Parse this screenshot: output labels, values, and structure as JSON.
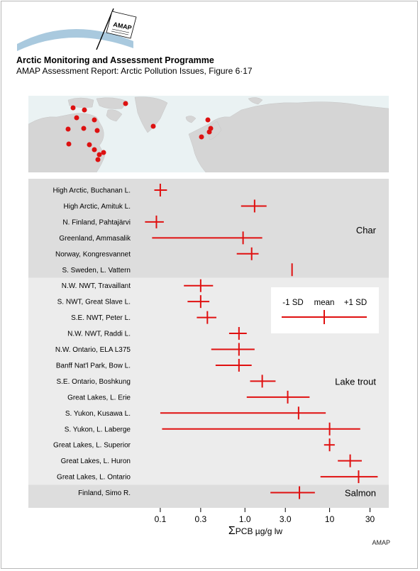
{
  "header": {
    "logo_text": "AMAP",
    "org": "Arctic Monitoring and Assessment Programme",
    "report": "AMAP Assessment Report: Arctic Pollution Issues, Figure 6·17"
  },
  "credit": "AMAP",
  "map": {
    "land_color": "#d5d5d5",
    "sea_color": "#eaf2f3",
    "dot_color": "#dd1111"
  },
  "colors": {
    "group_band": "#dddddd",
    "lake_band": "#ececec",
    "marker": "#e01010"
  },
  "legend": {
    "minus": "-1 SD",
    "mean": "mean",
    "plus": "+1 SD"
  },
  "chart_data": {
    "type": "scatter",
    "x_scale": "log",
    "xlim": [
      0.05,
      50
    ],
    "xticks": [
      0.1,
      0.3,
      1.0,
      3.0,
      10,
      30
    ],
    "xtick_labels": [
      "0.1",
      "0.3",
      "1.0",
      "3.0",
      "10",
      "30"
    ],
    "xlabel_symbol": "Σ",
    "xlabel": "PCB µg/g lw",
    "groups": [
      {
        "name": "Char",
        "first": 0,
        "last": 5
      },
      {
        "name": "Lake trout",
        "first": 6,
        "last": 18
      },
      {
        "name": "Salmon",
        "first": 19,
        "last": 19
      }
    ],
    "series": [
      {
        "label": "High Arctic, Buchanan L.",
        "low": 0.085,
        "mean": 0.1,
        "high": 0.12
      },
      {
        "label": "High Arctic, Amituk L.",
        "low": 0.9,
        "mean": 1.3,
        "high": 1.8
      },
      {
        "label": "N. Finland, Pahtajärvi",
        "low": 0.066,
        "mean": 0.09,
        "high": 0.11
      },
      {
        "label": "Greenland, Ammasalik",
        "low": 0.08,
        "mean": 0.95,
        "high": 1.6
      },
      {
        "label": "Norway, Kongresvannet",
        "low": 0.8,
        "mean": 1.2,
        "high": 1.45
      },
      {
        "label": "S. Sweden, L. Vattern",
        "low": 3.6,
        "mean": 3.6,
        "high": 3.6
      },
      {
        "label": "N.W. NWT, Travaillant",
        "low": 0.19,
        "mean": 0.3,
        "high": 0.42
      },
      {
        "label": "S. NWT, Great Slave L.",
        "low": 0.21,
        "mean": 0.3,
        "high": 0.38
      },
      {
        "label": "S.E. NWT, Peter L.",
        "low": 0.27,
        "mean": 0.36,
        "high": 0.46
      },
      {
        "label": "N.W. NWT, Raddi L.",
        "low": 0.65,
        "mean": 0.85,
        "high": 1.05
      },
      {
        "label": "N.W. Ontario, ELA L375",
        "low": 0.4,
        "mean": 0.85,
        "high": 1.3
      },
      {
        "label": "Banff Nat'l Park, Bow L.",
        "low": 0.45,
        "mean": 0.85,
        "high": 1.2
      },
      {
        "label": "S.E. Ontario, Boshkung",
        "low": 1.15,
        "mean": 1.6,
        "high": 2.3
      },
      {
        "label": "Great Lakes, L. Erie",
        "low": 1.05,
        "mean": 3.2,
        "high": 5.8
      },
      {
        "label": "S. Yukon, Kusawa L.",
        "low": 0.1,
        "mean": 4.3,
        "high": 9.0
      },
      {
        "label": "S. Yukon, L. Laberge",
        "low": 0.105,
        "mean": 10.0,
        "high": 23.0
      },
      {
        "label": "Great Lakes, L. Superior",
        "low": 8.6,
        "mean": 10.0,
        "high": 11.5
      },
      {
        "label": "Great Lakes, L. Huron",
        "low": 12.5,
        "mean": 17.5,
        "high": 24.0
      },
      {
        "label": "Great Lakes, L. Ontario",
        "low": 7.8,
        "mean": 22.0,
        "high": 37.0
      },
      {
        "label": "Finland, Simo R.",
        "low": 2.0,
        "mean": 4.4,
        "high": 6.7
      }
    ]
  }
}
